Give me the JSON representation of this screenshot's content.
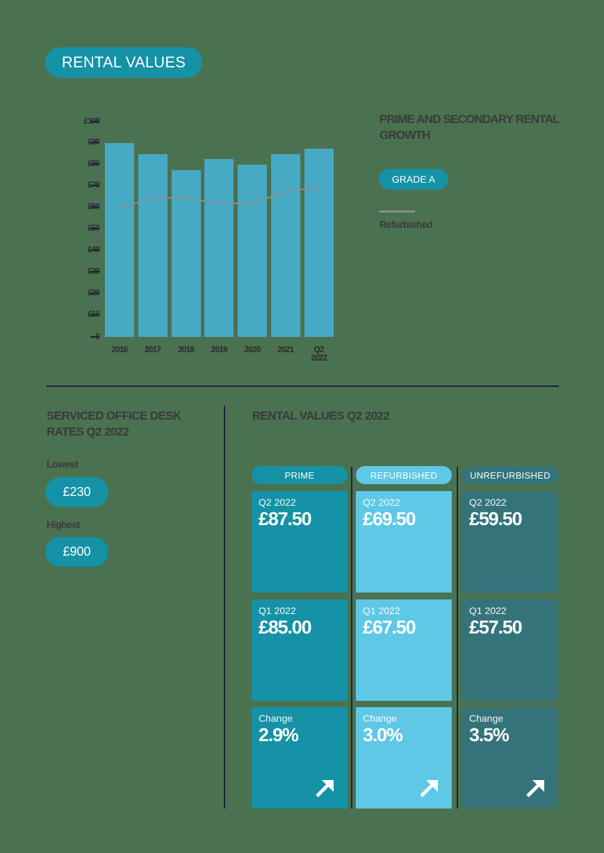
{
  "title": "RENTAL VALUES",
  "chart_data": {
    "type": "bar",
    "title": "PRIME AND SECONDARY RENTAL GROWTH",
    "categories": [
      "2016",
      "2017",
      "2018",
      "2019",
      "2020",
      "2021",
      "Q2 2022"
    ],
    "series": [
      {
        "name": "GRADE A",
        "type": "bar",
        "color": "#47aac4",
        "values": [
          90,
          85,
          77.5,
          82.5,
          80,
          85,
          87.5
        ]
      },
      {
        "name": "Refurbished",
        "type": "line",
        "color": "#8a8f94",
        "values": [
          60,
          64.5,
          64.5,
          62,
          62,
          67.5,
          69.5
        ]
      }
    ],
    "yticks": [
      "0",
      "£10",
      "£20",
      "£30",
      "£40",
      "£50",
      "£60",
      "£70",
      "£80",
      "£90",
      "£100"
    ],
    "ylim": [
      0,
      100
    ],
    "xlabel": "",
    "ylabel": "",
    "grid": false,
    "legend_position": "right"
  },
  "legend": {
    "title": "PRIME AND SECONDARY RENTAL GROWTH",
    "bar_label": "GRADE A",
    "line_label": "Refurbished"
  },
  "desk_rates": {
    "title": "SERVICED OFFICE DESK RATES Q2 2022",
    "lowest_label": "Lowest",
    "lowest_value": "£230",
    "highest_label": "Highest",
    "highest_value": "£900"
  },
  "rental_values": {
    "title": "RENTAL VALUES Q2 2022",
    "columns": [
      {
        "label": "PRIME",
        "color": "#1592a5",
        "cards": [
          {
            "label": "Q2 2022",
            "value": "£87.50"
          },
          {
            "label": "Q1 2022",
            "value": "£85.00"
          },
          {
            "label": "Change",
            "value": "2.9%"
          }
        ]
      },
      {
        "label": "REFURBISHED",
        "color": "#5ec8e6",
        "cards": [
          {
            "label": "Q2 2022",
            "value": "£69.50"
          },
          {
            "label": "Q1 2022",
            "value": "£67.50"
          },
          {
            "label": "Change",
            "value": "3.0%"
          }
        ]
      },
      {
        "label": "UNREFURBISHED",
        "color": "#35737b",
        "cards": [
          {
            "label": "Q2 2022",
            "value": "£59.50"
          },
          {
            "label": "Q1 2022",
            "value": "£57.50"
          },
          {
            "label": "Change",
            "value": "3.5%"
          }
        ]
      }
    ],
    "change_icon": "arrow-up-right-icon"
  }
}
